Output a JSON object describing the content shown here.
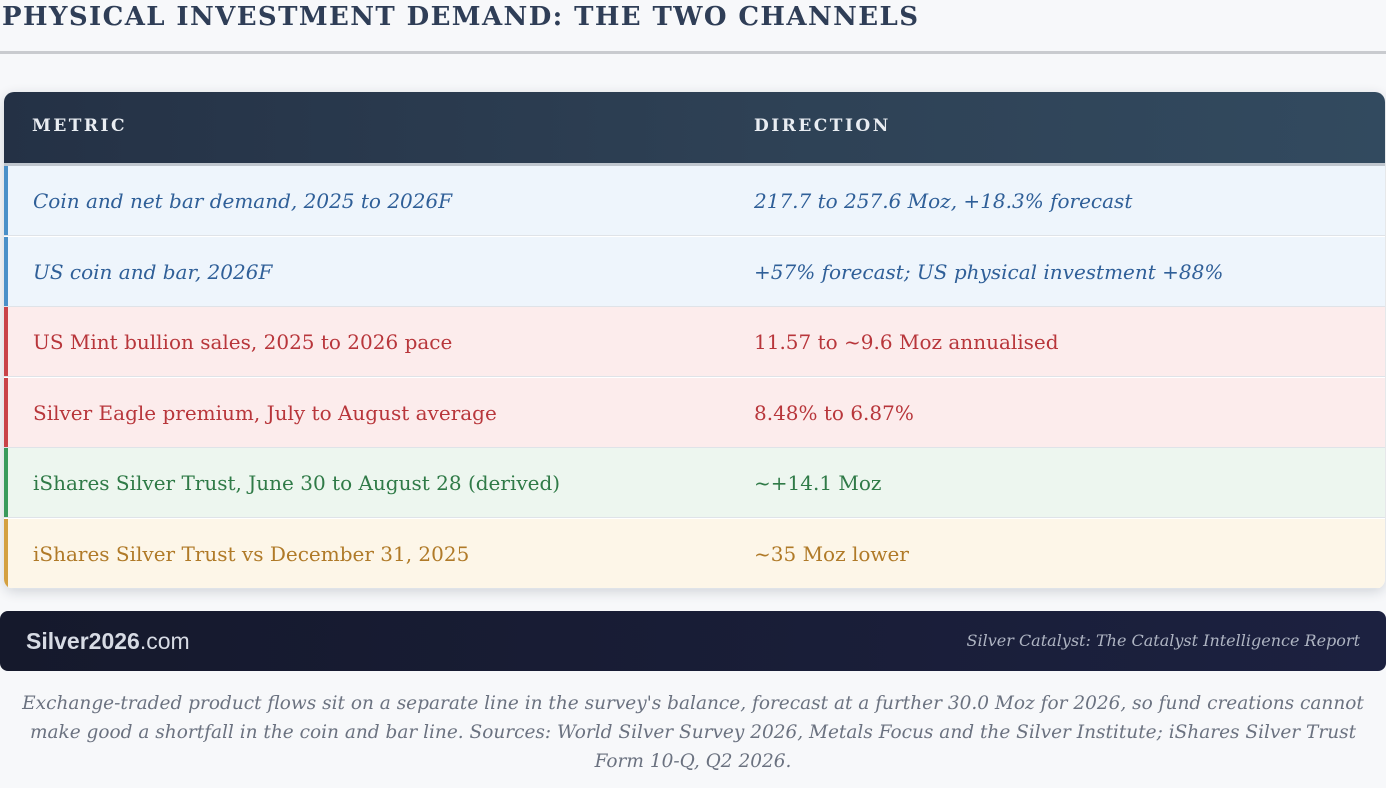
{
  "title": "PHYSICAL INVESTMENT DEMAND: THE TWO CHANNELS",
  "table": {
    "headers": [
      "METRIC",
      "DIRECTION"
    ],
    "rows": [
      {
        "metric": "Coin and net bar demand, 2025 to 2026F",
        "direction": "217.7 to 257.6 Moz, +18.3% forecast",
        "accent": "#4a90c8",
        "bg": "#eef5fc",
        "text": "#2f5f98",
        "italic": true
      },
      {
        "metric": "US coin and bar, 2026F",
        "direction": "+57% forecast; US physical investment +88%",
        "accent": "#4a90c8",
        "bg": "#eef5fc",
        "text": "#2f5f98",
        "italic": true
      },
      {
        "metric": "US Mint bullion sales, 2025 to 2026 pace",
        "direction": "11.57 to ~9.6 Moz annualised",
        "accent": "#c94448",
        "bg": "#fcecec",
        "text": "#b8363b",
        "italic": false
      },
      {
        "metric": "Silver Eagle premium, July to August average",
        "direction": "8.48% to 6.87%",
        "accent": "#c94448",
        "bg": "#fcecec",
        "text": "#b8363b",
        "italic": false
      },
      {
        "metric": "iShares Silver Trust, June 30 to August 28 (derived)",
        "direction": "~+14.1 Moz",
        "accent": "#3a9a5c",
        "bg": "#edf6ef",
        "text": "#2f7a47",
        "italic": false
      },
      {
        "metric": "iShares Silver Trust vs December 31, 2025",
        "direction": "~35 Moz lower",
        "accent": "#d4a040",
        "bg": "#fdf6e8",
        "text": "#b07a28",
        "italic": false
      }
    ]
  },
  "footer": {
    "brand_main": "Silver2026",
    "brand_suffix": ".com",
    "tagline": "Silver Catalyst: The Catalyst Intelligence Report"
  },
  "note": "Exchange-traded product flows sit on a separate line in the survey's balance, forecast at a further 30.0 Moz for 2026, so fund creations cannot make good a shortfall in the coin and bar line. Sources: World Silver Survey 2026, Metals Focus and the Silver Institute; iShares Silver Trust Form 10-Q, Q2 2026."
}
